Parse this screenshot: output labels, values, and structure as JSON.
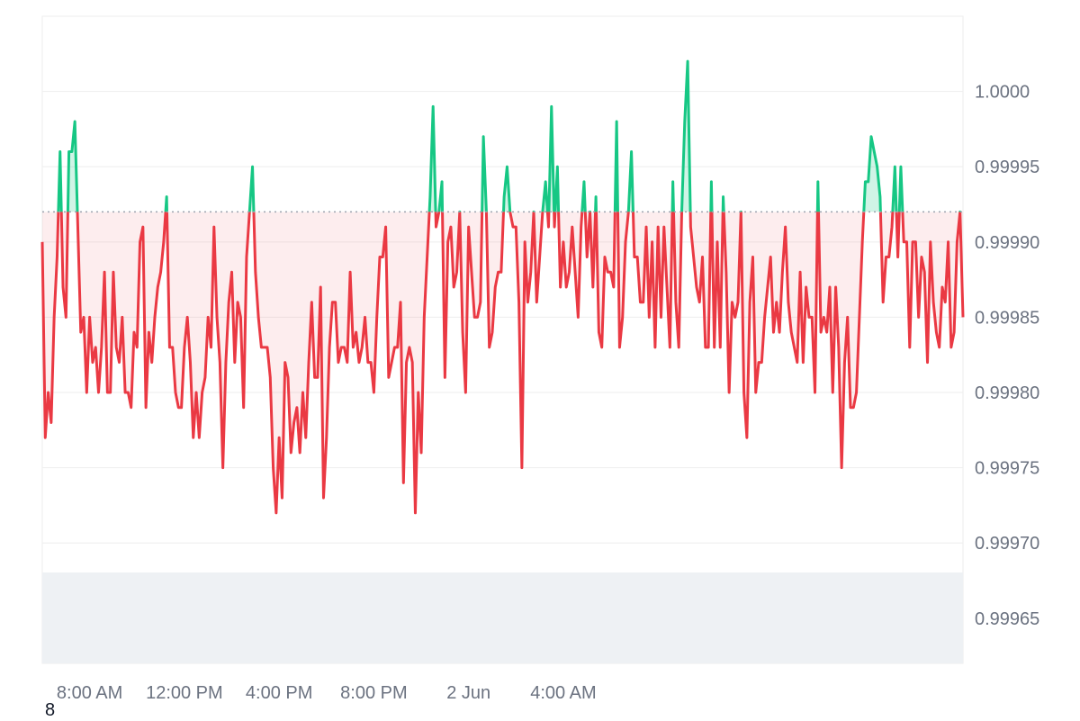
{
  "chart_data": {
    "type": "area",
    "baseline": 0.99992,
    "ylim": [
      0.99962,
      1.00005
    ],
    "yticks": [
      {
        "value": 1.0,
        "label": "1.0000"
      },
      {
        "value": 0.99995,
        "label": "0.99995"
      },
      {
        "value": 0.9999,
        "label": "0.99990"
      },
      {
        "value": 0.99985,
        "label": "0.99985"
      },
      {
        "value": 0.9998,
        "label": "0.99980"
      },
      {
        "value": 0.99975,
        "label": "0.99975"
      },
      {
        "value": 0.9997,
        "label": "0.99970"
      },
      {
        "value": 0.99965,
        "label": "0.99965"
      }
    ],
    "xticks": [
      {
        "label": "8:00 AM",
        "index": 16
      },
      {
        "label": "12:00 PM",
        "index": 48
      },
      {
        "label": "4:00 PM",
        "index": 80
      },
      {
        "label": "8:00 PM",
        "index": 112
      },
      {
        "label": "2 Jun",
        "index": 144
      },
      {
        "label": "4:00 AM",
        "index": 176
      }
    ],
    "colors": {
      "up": "#16c784",
      "down": "#ea3943",
      "baseline": "#9ca3af",
      "grid": "#eeeeee",
      "volume": "#eef1f4"
    },
    "values": [
      0.9999,
      0.99977,
      0.9998,
      0.99978,
      0.99985,
      0.99989,
      0.99996,
      0.99987,
      0.99985,
      0.99996,
      0.99996,
      0.99998,
      0.99991,
      0.99984,
      0.99985,
      0.9998,
      0.99985,
      0.99982,
      0.99983,
      0.9998,
      0.99983,
      0.99988,
      0.9998,
      0.9998,
      0.99988,
      0.99983,
      0.99982,
      0.99985,
      0.9998,
      0.9998,
      0.99979,
      0.99984,
      0.99983,
      0.9999,
      0.99991,
      0.99979,
      0.99984,
      0.99982,
      0.99985,
      0.99987,
      0.99988,
      0.9999,
      0.99993,
      0.99983,
      0.99983,
      0.9998,
      0.99979,
      0.99979,
      0.99983,
      0.99985,
      0.99982,
      0.99977,
      0.9998,
      0.99977,
      0.9998,
      0.99981,
      0.99985,
      0.99983,
      0.99991,
      0.99985,
      0.99982,
      0.99975,
      0.99982,
      0.99986,
      0.99988,
      0.99982,
      0.99986,
      0.99985,
      0.99979,
      0.99989,
      0.99992,
      0.99995,
      0.99988,
      0.99985,
      0.99983,
      0.99983,
      0.99983,
      0.99981,
      0.99975,
      0.99972,
      0.99977,
      0.99973,
      0.99982,
      0.99981,
      0.99976,
      0.99978,
      0.99979,
      0.99976,
      0.9998,
      0.99977,
      0.99982,
      0.99986,
      0.99981,
      0.99981,
      0.99987,
      0.99973,
      0.99977,
      0.99983,
      0.99986,
      0.99986,
      0.99982,
      0.99983,
      0.99983,
      0.99982,
      0.99988,
      0.99983,
      0.99984,
      0.99982,
      0.99983,
      0.99985,
      0.99982,
      0.99982,
      0.9998,
      0.99985,
      0.99989,
      0.99989,
      0.99991,
      0.99981,
      0.99982,
      0.99983,
      0.99983,
      0.99986,
      0.99974,
      0.99982,
      0.99983,
      0.99982,
      0.99972,
      0.9998,
      0.99976,
      0.99985,
      0.99989,
      0.99993,
      0.99999,
      0.99991,
      0.99992,
      0.99994,
      0.99981,
      0.9999,
      0.99991,
      0.99987,
      0.99988,
      0.99992,
      0.99984,
      0.9998,
      0.99991,
      0.99988,
      0.99985,
      0.99985,
      0.99986,
      0.99997,
      0.99992,
      0.99983,
      0.99984,
      0.99987,
      0.99988,
      0.99988,
      0.99993,
      0.99995,
      0.99992,
      0.99991,
      0.99991,
      0.99986,
      0.99975,
      0.9999,
      0.99986,
      0.99988,
      0.99992,
      0.99986,
      0.99989,
      0.99992,
      0.99994,
      0.99991,
      0.99999,
      0.99991,
      0.99995,
      0.99987,
      0.9999,
      0.99987,
      0.99988,
      0.99991,
      0.99988,
      0.99985,
      0.99991,
      0.99994,
      0.99989,
      0.99992,
      0.99987,
      0.99993,
      0.99984,
      0.99983,
      0.99989,
      0.99988,
      0.99988,
      0.99987,
      0.99998,
      0.99983,
      0.99985,
      0.9999,
      0.99992,
      0.99996,
      0.99989,
      0.99989,
      0.99986,
      0.99986,
      0.99991,
      0.99985,
      0.9999,
      0.99983,
      0.99991,
      0.99985,
      0.99991,
      0.99987,
      0.99983,
      0.99994,
      0.99986,
      0.99983,
      0.99992,
      0.99998,
      1.00002,
      0.99991,
      0.99989,
      0.99987,
      0.99986,
      0.99989,
      0.99983,
      0.99983,
      0.99994,
      0.99983,
      0.9999,
      0.99983,
      0.99993,
      0.99988,
      0.9998,
      0.99986,
      0.99985,
      0.99986,
      0.99992,
      0.9998,
      0.99977,
      0.99986,
      0.99989,
      0.9998,
      0.99982,
      0.99982,
      0.99985,
      0.99987,
      0.99989,
      0.99984,
      0.99986,
      0.99984,
      0.99988,
      0.99991,
      0.99986,
      0.99984,
      0.99983,
      0.99982,
      0.99988,
      0.99982,
      0.99987,
      0.99985,
      0.99985,
      0.9998,
      0.99994,
      0.99984,
      0.99985,
      0.99984,
      0.99987,
      0.9998,
      0.99987,
      0.99983,
      0.99975,
      0.99982,
      0.99985,
      0.99979,
      0.99979,
      0.9998,
      0.99985,
      0.9999,
      0.99994,
      0.99994,
      0.99997,
      0.99996,
      0.99995,
      0.99993,
      0.99986,
      0.99989,
      0.99989,
      0.99991,
      0.99995,
      0.99989,
      0.99995,
      0.9999,
      0.9999,
      0.99983,
      0.9999,
      0.9999,
      0.99985,
      0.99989,
      0.99988,
      0.99982,
      0.9999,
      0.99986,
      0.99984,
      0.99983,
      0.99987,
      0.99986,
      0.9999,
      0.99983,
      0.99984,
      0.9999,
      0.99992,
      0.99985
    ]
  }
}
